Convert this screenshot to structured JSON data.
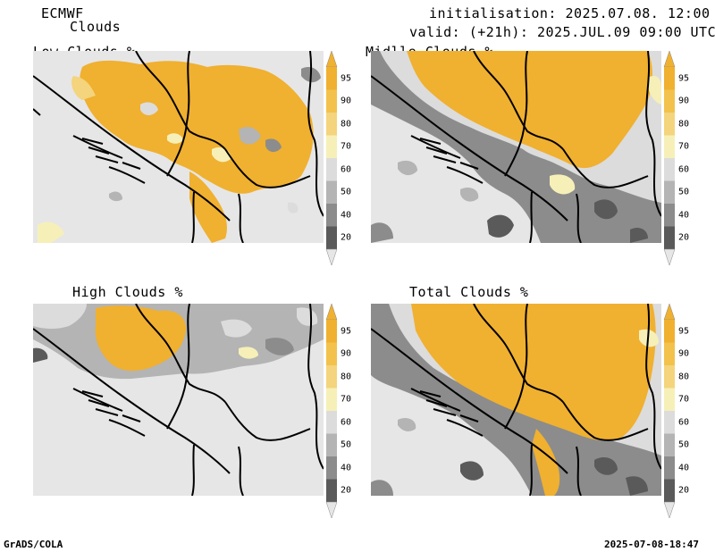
{
  "header": {
    "model": "ECMWF",
    "product": "Clouds",
    "initialisation": "initialisation: 2025.07.08. 12:00 UTC",
    "valid": "valid: (+21h): 2025.JUL.09 09:00 UTC"
  },
  "panels": [
    {
      "title": "Low Clouds %"
    },
    {
      "title": "Midlle Clouds %"
    },
    {
      "title": "High Clouds %"
    },
    {
      "title": "Total Clouds %"
    }
  ],
  "colorbar": {
    "labels": [
      "95",
      "90",
      "80",
      "70",
      "60",
      "50",
      "40",
      "20"
    ],
    "colors": {
      "c95": "#f0b030",
      "c90": "#f2c24c",
      "c80": "#f4d47c",
      "c70": "#f6f0b8",
      "c60": "#dcdcdc",
      "c50": "#b4b4b4",
      "c40": "#8c8c8c",
      "c20": "#5a5a5a",
      "background": "#e6e6e6"
    }
  },
  "footer": {
    "left": "GrADS/COLA",
    "right": "2025-07-08-18:47"
  }
}
